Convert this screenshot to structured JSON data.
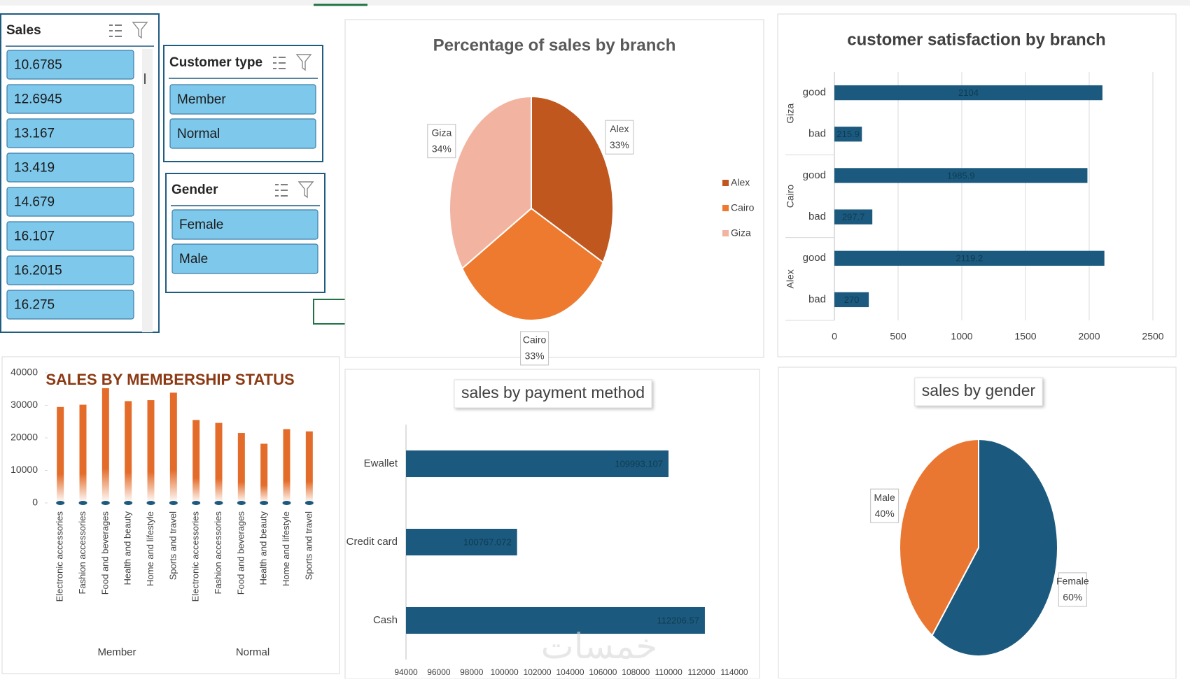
{
  "slicers": [
    {
      "title": "Sales",
      "items": [
        "10.6785",
        "12.6945",
        "13.167",
        "13.419",
        "14.679",
        "16.107",
        "16.2015",
        "16.275"
      ]
    },
    {
      "title": "Customer type",
      "items": [
        "Member",
        "Normal"
      ]
    },
    {
      "title": "Gender",
      "items": [
        "Female",
        "Male"
      ]
    }
  ],
  "watermark": "خمسات",
  "chart_data": [
    {
      "type": "pie",
      "title": "Percentage of sales by branch",
      "categories": [
        "Alex",
        "Cairo",
        "Giza"
      ],
      "values": [
        33,
        33,
        34
      ],
      "value_labels": [
        "33%",
        "33%",
        "34%"
      ],
      "colors": [
        "#c0571f",
        "#ee7a30",
        "#f2b4a0"
      ],
      "legend": "right"
    },
    {
      "type": "grouped-hbar",
      "title": "customer satisfaction by branch",
      "groups": [
        {
          "name": "Giza",
          "categories": [
            "good",
            "bad"
          ],
          "values": [
            2104,
            215.9
          ]
        },
        {
          "name": "Cairo",
          "categories": [
            "good",
            "bad"
          ],
          "values": [
            1985.9,
            297.7
          ]
        },
        {
          "name": "Alex",
          "categories": [
            "good",
            "bad"
          ],
          "values": [
            2119.2,
            270
          ]
        }
      ],
      "color": "#1b5a7e",
      "xlim": [
        0,
        2500
      ],
      "xticks": [
        0,
        500,
        1000,
        1500,
        2000,
        2500
      ],
      "grid": true
    },
    {
      "type": "grouped-bar",
      "title": "SALES BY MEMBERSHIP STATUS",
      "groups": [
        {
          "name": "Member",
          "categories": [
            "Electronic accessories",
            "Fashion accessories",
            "Food and beverages",
            "Health and beauty",
            "Home and lifestyle",
            "Sports and travel"
          ],
          "values": [
            29500,
            30200,
            35300,
            31300,
            31600,
            33900
          ]
        },
        {
          "name": "Normal",
          "categories": [
            "Electronic accessories",
            "Fashion accessories",
            "Food and beverages",
            "Health and beauty",
            "Home and lifestyle",
            "Sports and travel"
          ],
          "values": [
            25500,
            24600,
            21500,
            18200,
            22700,
            22000
          ]
        }
      ],
      "color": "#e46c2a",
      "ylim": [
        0,
        40000
      ],
      "yticks": [
        0,
        10000,
        20000,
        30000,
        40000
      ]
    },
    {
      "type": "hbar",
      "title": "sales by payment method",
      "categories": [
        "Ewallet",
        "Credit card",
        "Cash"
      ],
      "values": [
        109993.107,
        100767.072,
        112206.57
      ],
      "color": "#1b5a7e",
      "xlim": [
        94000,
        114000
      ],
      "xticks": [
        94000,
        96000,
        98000,
        100000,
        102000,
        104000,
        106000,
        108000,
        110000,
        112000,
        114000
      ]
    },
    {
      "type": "pie",
      "title": "sales by gender",
      "categories": [
        "Female",
        "Male"
      ],
      "values": [
        60,
        40
      ],
      "value_labels": [
        "60%",
        "40%"
      ],
      "colors": [
        "#1b5a7e",
        "#e97732"
      ]
    }
  ]
}
